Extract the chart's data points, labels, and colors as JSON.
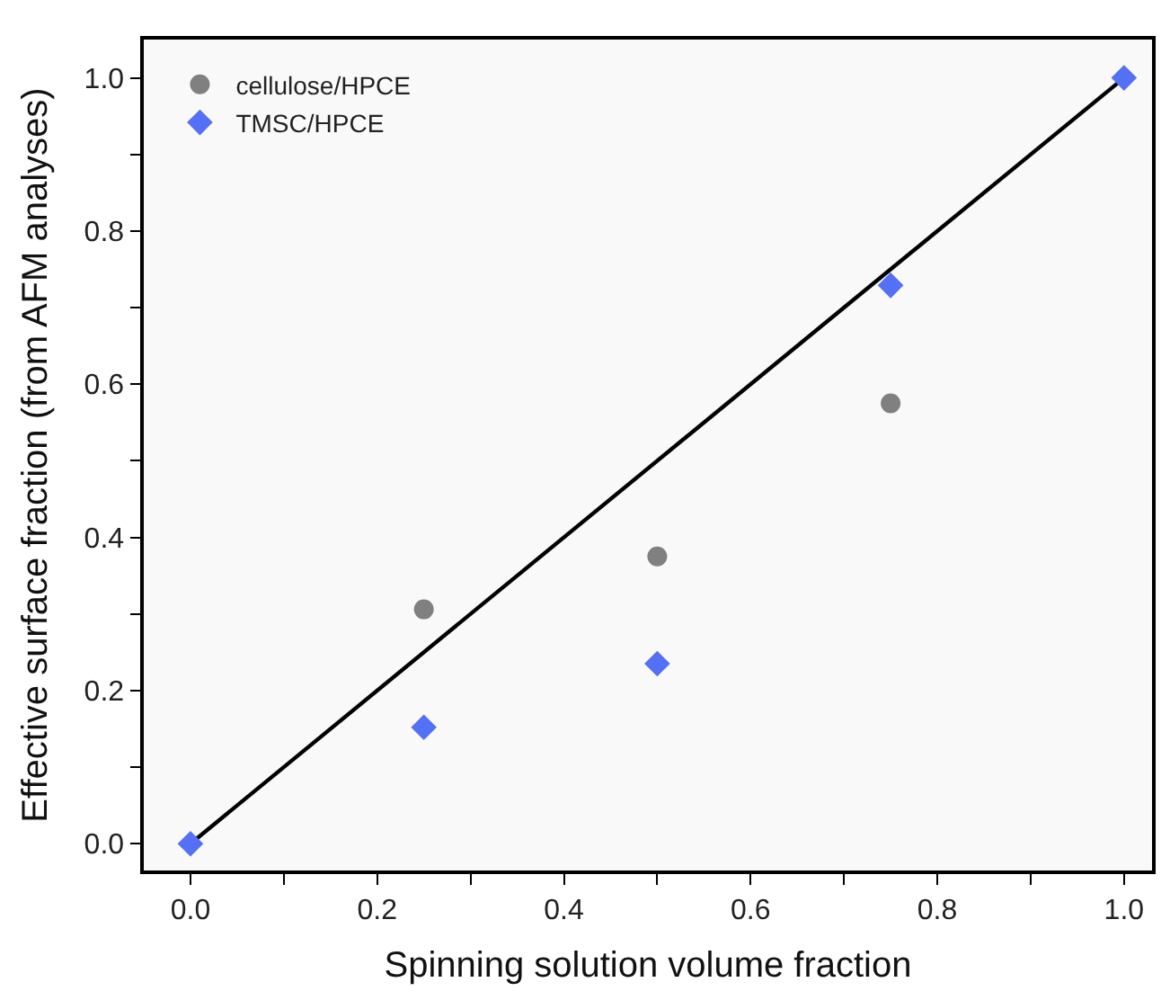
{
  "chart_data": {
    "type": "scatter",
    "xlabel": "Spinning solution volume fraction",
    "ylabel": "Effective surface fraction (from AFM analyses)",
    "xlim": [
      -0.05,
      1.03
    ],
    "ylim": [
      -0.035,
      1.05
    ],
    "xticks": [
      {
        "value": 0,
        "label": "0.0"
      },
      {
        "value": 0.1,
        "label": null
      },
      {
        "value": 0.2,
        "label": "0.2"
      },
      {
        "value": 0.3,
        "label": null
      },
      {
        "value": 0.4,
        "label": "0.4"
      },
      {
        "value": 0.5,
        "label": null
      },
      {
        "value": 0.6,
        "label": "0.6"
      },
      {
        "value": 0.7,
        "label": null
      },
      {
        "value": 0.8,
        "label": "0.8"
      },
      {
        "value": 0.9,
        "label": null
      },
      {
        "value": 1.0,
        "label": "1.0"
      }
    ],
    "yticks": [
      {
        "value": 0,
        "label": "0.0"
      },
      {
        "value": 0.1,
        "label": null
      },
      {
        "value": 0.2,
        "label": "0.2"
      },
      {
        "value": 0.3,
        "label": null
      },
      {
        "value": 0.4,
        "label": "0.4"
      },
      {
        "value": 0.5,
        "label": null
      },
      {
        "value": 0.6,
        "label": "0.6"
      },
      {
        "value": 0.7,
        "label": null
      },
      {
        "value": 0.8,
        "label": "0.8"
      },
      {
        "value": 0.9,
        "label": null
      },
      {
        "value": 1.0,
        "label": "1.0"
      }
    ],
    "grid": false,
    "legend": "top left",
    "series": [
      {
        "type": "line",
        "color": "#000000",
        "x": [
          0,
          1
        ],
        "values": [
          0,
          1
        ],
        "marker": "none",
        "line_style": "solid"
      },
      {
        "name": "cellulose/HPCE",
        "color": "#808080",
        "marker": "circle",
        "x": [
          0.25,
          0.5,
          0.75
        ],
        "values": [
          0.306,
          0.375,
          0.575
        ]
      },
      {
        "name": "TMSC/HPCE",
        "color": "#5470f5",
        "marker": "diamond",
        "x": [
          0,
          0.25,
          0.5,
          0.75,
          1.0
        ],
        "values": [
          0,
          0.152,
          0.235,
          0.729,
          1.0
        ]
      }
    ]
  }
}
